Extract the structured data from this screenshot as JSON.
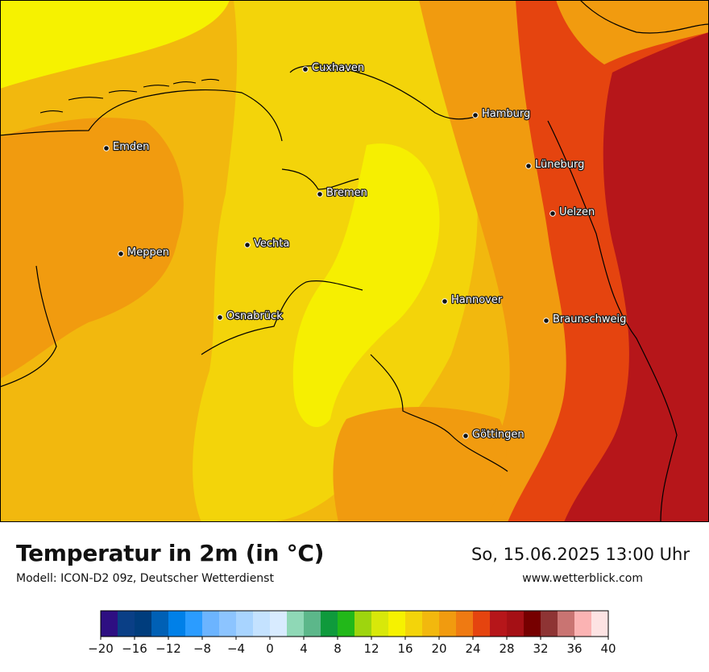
{
  "map": {
    "title": "Temperatur in 2m (in °C)",
    "model": "Modell: ICON-D2 09z, Deutscher Wetterdienst",
    "valid_time": "So, 15.06.2025 13:00 Uhr",
    "website": "www.wetterblick.com",
    "cities": [
      {
        "name": "Cuxhaven"
      },
      {
        "name": "Hamburg"
      },
      {
        "name": "Emden"
      },
      {
        "name": "Lüneburg"
      },
      {
        "name": "Bremen"
      },
      {
        "name": "Uelzen"
      },
      {
        "name": "Vechta"
      },
      {
        "name": "Meppen"
      },
      {
        "name": "Hannover"
      },
      {
        "name": "Osnabrück"
      },
      {
        "name": "Braunschweig"
      },
      {
        "name": "Göttingen"
      }
    ]
  },
  "legend": {
    "min": -20,
    "max": 40,
    "step": 2,
    "colors": [
      "#2e0f82",
      "#0a3f86",
      "#003d7d",
      "#0060b5",
      "#0080e8",
      "#2b9cff",
      "#6cb4ff",
      "#8cc4ff",
      "#a8d4ff",
      "#c4e2ff",
      "#d8ebff",
      "#8fd8b6",
      "#5cb78a",
      "#0f9a3c",
      "#22b819",
      "#9ed50e",
      "#d8e80a",
      "#f6f200",
      "#f3d40a",
      "#f2b80e",
      "#f19b0f",
      "#ef7a12",
      "#e5440f",
      "#b6161a",
      "#a51015",
      "#760000",
      "#8e3434",
      "#c97472",
      "#fbb3b3",
      "#fde3e3"
    ],
    "tick_labels": [
      "−20",
      "−16",
      "−12",
      "−8",
      "−4",
      "0",
      "4",
      "8",
      "12",
      "16",
      "20",
      "24",
      "28",
      "32",
      "36",
      "40"
    ]
  }
}
